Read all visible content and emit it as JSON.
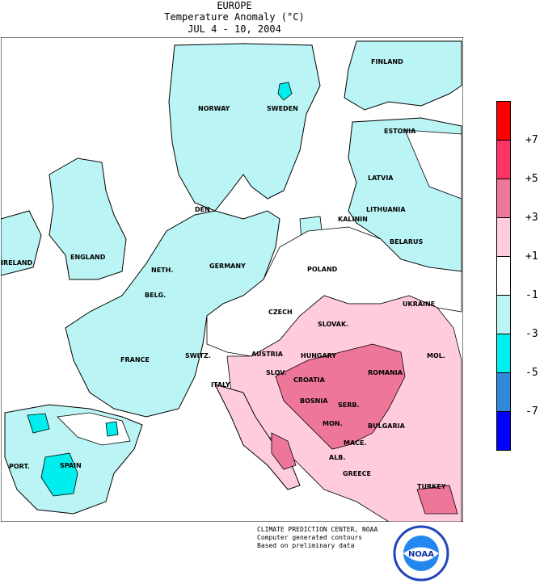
{
  "header": {
    "region": "EUROPE",
    "title": "Temperature Anomaly (°C)",
    "period": "JUL 4 - 10, 2004"
  },
  "legend": {
    "colors": [
      "#ff0000",
      "#ff3366",
      "#ee7799",
      "#ffccdd",
      "#ffffff",
      "#bbf4f4",
      "#00eeee",
      "#3388dd",
      "#0000ff"
    ],
    "labels": [
      "+7",
      "+5",
      "+3",
      "+1",
      "-1",
      "-3",
      "-5",
      "-7"
    ]
  },
  "map": {
    "colors": {
      "land_cool": "#bbf4f4",
      "land_warm": "#ffccdd",
      "warm_mid": "#ee7799",
      "cool_mid": "#00eeee",
      "neutral": "#ffffff"
    },
    "country_labels": {
      "finland": "FINLAND",
      "norway": "NORWAY",
      "sweden": "SWEDEN",
      "estonia": "ESTONIA",
      "latvia": "LATVIA",
      "lithuania": "LITHUANIA",
      "kalinin": "KALININ",
      "belarus": "BELARUS",
      "den": "DEN",
      "ireland": "IRELAND",
      "england": "ENGLAND",
      "neth": "NETH.",
      "germany": "GERMANY",
      "poland": "POLAND",
      "belg": "BELG.",
      "czech": "CZECH",
      "slovak": "SLOVAK.",
      "ukraine": "UKRAINE",
      "austria": "AUSTRIA",
      "hungary": "HUNGARY",
      "switz": "SWITZ.",
      "france": "FRANCE",
      "mol": "MOL.",
      "romania": "ROMANIA",
      "slov": "SLOV.",
      "croatia": "CROATIA",
      "italy": "ITALY",
      "bosnia": "BOSNIA",
      "serb": "SERB.",
      "mon": "MON.",
      "bulgaria": "BULGARIA",
      "mace": "MACE.",
      "port": "PORT.",
      "spain": "SPAIN",
      "alb": "ALB.",
      "greece": "GREECE",
      "turkey": "TURKEY"
    }
  },
  "credits": {
    "line1": "CLIMATE PREDICTION CENTER, NOAA",
    "line2": "Computer generated contours",
    "line3": "Based on preliminary data"
  },
  "logo": {
    "text": "NOAA"
  }
}
